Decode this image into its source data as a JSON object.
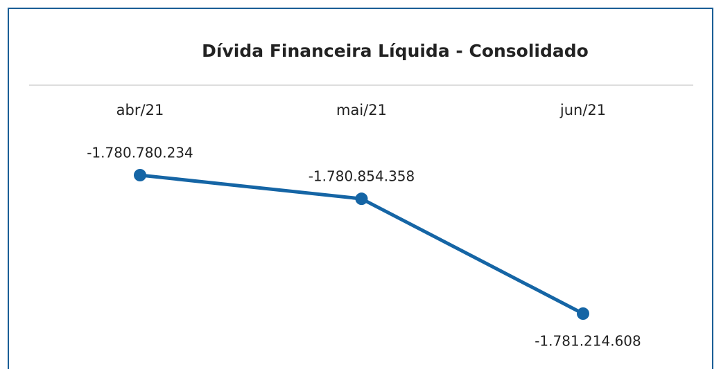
{
  "chart_data": {
    "type": "line",
    "title": "Dívida Financeira Líquida - Consolidado",
    "categories": [
      "abr/21",
      "mai/21",
      "jun/21"
    ],
    "series": [
      {
        "name": null,
        "color": "#1565a5",
        "values": [
          -1780780234,
          -1780854358,
          -1781214608
        ],
        "value_labels": [
          "-1.780.780.234",
          "-1.780.854.358",
          "-1.781.214.608"
        ]
      }
    ]
  }
}
